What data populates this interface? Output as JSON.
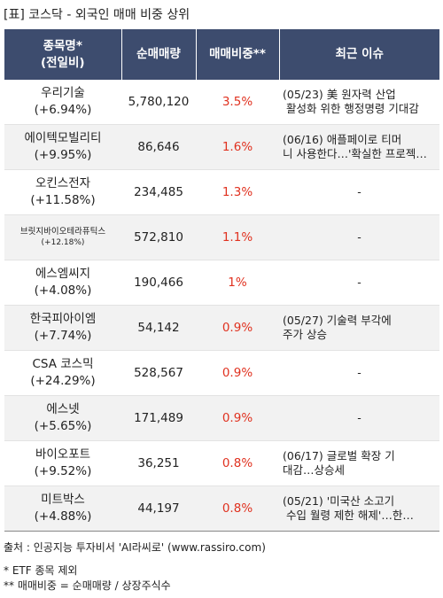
{
  "title": "[표] 코스닥 - 외국인 매매 비중 상위",
  "headers": {
    "name": "종목명*",
    "name_sub": "(전일비)",
    "volume": "순매매량",
    "ratio": "매매비중**",
    "issue": "최근 이슈"
  },
  "rows": [
    {
      "name": "우리기술",
      "change": "(+6.94%)",
      "volume": "5,780,120",
      "ratio": "3.5%",
      "issue": "(05/23) 美 원자력 산업\n 활성화 위한 행정명령 기대감"
    },
    {
      "name": "에이텍모빌리티",
      "change": "(+9.95%)",
      "volume": "86,646",
      "ratio": "1.6%",
      "issue": "(06/16) 애플페이로 티머\n니 사용한다…'확실한 프로젝…"
    },
    {
      "name": "오킨스전자",
      "change": "(+11.58%)",
      "volume": "234,485",
      "ratio": "1.3%",
      "issue": "-"
    },
    {
      "name": "브릿지바이오테라퓨틱스",
      "change": "(+12.18%)",
      "volume": "572,810",
      "ratio": "1.1%",
      "issue": "-",
      "small": true
    },
    {
      "name": "에스엠씨지",
      "change": "(+4.08%)",
      "volume": "190,466",
      "ratio": "1%",
      "issue": "-"
    },
    {
      "name": "한국피아이엠",
      "change": "(+7.74%)",
      "volume": "54,142",
      "ratio": "0.9%",
      "issue": "(05/27) 기술력 부각에\n주가 상승"
    },
    {
      "name": "CSA 코스믹",
      "change": "(+24.29%)",
      "volume": "528,567",
      "ratio": "0.9%",
      "issue": "-"
    },
    {
      "name": "에스넷",
      "change": "(+5.65%)",
      "volume": "171,489",
      "ratio": "0.9%",
      "issue": "-"
    },
    {
      "name": "바이오포트",
      "change": "(+9.52%)",
      "volume": "36,251",
      "ratio": "0.8%",
      "issue": "(06/17) 글로벌 확장 기\n대감…상승세"
    },
    {
      "name": "미트박스",
      "change": "(+4.88%)",
      "volume": "44,197",
      "ratio": "0.8%",
      "issue": "(05/21) '미국산 소고기\n 수입 월령 제한 해제'…한…"
    }
  ],
  "footer": {
    "source": "출처 : 인공지능 투자비서 'AI라씨로' (www.rassiro.com)",
    "note1": "* ETF 종목 제외",
    "note2": "** 매매비중 = 순매매량 / 상장주식수"
  },
  "colors": {
    "header_bg": "#3d4c6e",
    "ratio_text": "#e0311f",
    "stripe": "#f2f2f2"
  }
}
